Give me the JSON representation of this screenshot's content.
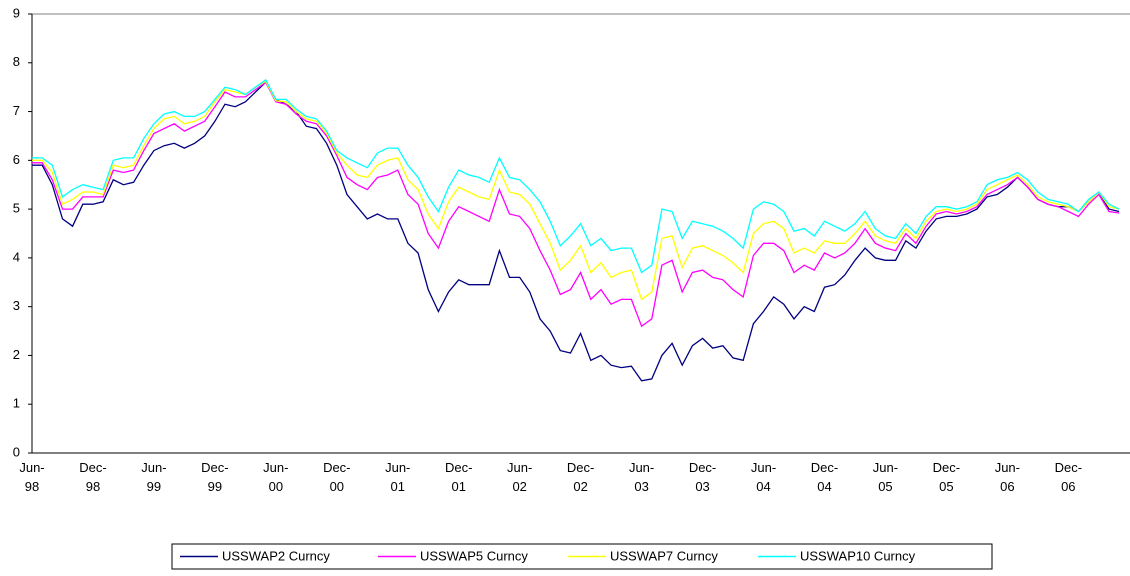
{
  "chart_data": {
    "type": "line",
    "categories": [
      "Jun-98",
      null,
      null,
      null,
      null,
      null,
      "Dec-98",
      null,
      null,
      null,
      null,
      null,
      "Jun-99",
      null,
      null,
      null,
      null,
      null,
      "Dec-99",
      null,
      null,
      null,
      null,
      null,
      "Jun-00",
      null,
      null,
      null,
      null,
      null,
      "Dec-00",
      null,
      null,
      null,
      null,
      null,
      "Jun-01",
      null,
      null,
      null,
      null,
      null,
      "Dec-01",
      null,
      null,
      null,
      null,
      null,
      "Jun-02",
      null,
      null,
      null,
      null,
      null,
      "Dec-02",
      null,
      null,
      null,
      null,
      null,
      "Jun-03",
      null,
      null,
      null,
      null,
      null,
      "Dec-03",
      null,
      null,
      null,
      null,
      null,
      "Jun-04",
      null,
      null,
      null,
      null,
      null,
      "Dec-04",
      null,
      null,
      null,
      null,
      null,
      "Jun-05",
      null,
      null,
      null,
      null,
      null,
      "Dec-05",
      null,
      null,
      null,
      null,
      null,
      "Jun-06",
      null,
      null,
      null,
      null,
      null,
      "Dec-06",
      null,
      null,
      null,
      null,
      null
    ],
    "series": [
      {
        "name": "USSWAP2 Curncy",
        "color": "#000080",
        "values": [
          5.9,
          5.9,
          5.5,
          4.8,
          4.65,
          5.1,
          5.1,
          5.15,
          5.6,
          5.5,
          5.55,
          5.9,
          6.2,
          6.3,
          6.35,
          6.25,
          6.35,
          6.5,
          6.8,
          7.15,
          7.1,
          7.2,
          7.4,
          7.6,
          7.25,
          7.15,
          7.0,
          6.7,
          6.65,
          6.35,
          5.9,
          5.3,
          5.05,
          4.8,
          4.9,
          4.8,
          4.8,
          4.3,
          4.1,
          3.35,
          2.9,
          3.3,
          3.55,
          3.45,
          3.45,
          3.45,
          4.15,
          3.6,
          3.6,
          3.3,
          2.75,
          2.5,
          2.1,
          2.05,
          2.45,
          1.9,
          2.0,
          1.8,
          1.75,
          1.78,
          1.48,
          1.52,
          2.0,
          2.25,
          1.8,
          2.2,
          2.35,
          2.15,
          2.2,
          1.95,
          1.9,
          2.65,
          2.9,
          3.2,
          3.05,
          2.75,
          3.0,
          2.9,
          3.4,
          3.45,
          3.65,
          3.95,
          4.2,
          4.0,
          3.95,
          3.95,
          4.35,
          4.2,
          4.55,
          4.8,
          4.85,
          4.85,
          4.9,
          5.0,
          5.25,
          5.3,
          5.45,
          5.65,
          5.45,
          5.2,
          5.1,
          5.05,
          5.05,
          4.95,
          5.15,
          5.35,
          5.0,
          4.95
        ]
      },
      {
        "name": "USSWAP5 Curncy",
        "color": "#ff00ff",
        "values": [
          5.95,
          5.95,
          5.6,
          5.0,
          5.0,
          5.25,
          5.25,
          5.25,
          5.8,
          5.75,
          5.8,
          6.2,
          6.55,
          6.65,
          6.75,
          6.6,
          6.7,
          6.8,
          7.1,
          7.4,
          7.3,
          7.3,
          7.45,
          7.6,
          7.2,
          7.15,
          6.95,
          6.8,
          6.75,
          6.5,
          6.1,
          5.65,
          5.5,
          5.4,
          5.65,
          5.7,
          5.8,
          5.3,
          5.1,
          4.5,
          4.2,
          4.75,
          5.05,
          4.95,
          4.85,
          4.75,
          5.4,
          4.9,
          4.85,
          4.6,
          4.15,
          3.75,
          3.25,
          3.35,
          3.7,
          3.15,
          3.35,
          3.05,
          3.15,
          3.15,
          2.6,
          2.75,
          3.85,
          3.95,
          3.3,
          3.7,
          3.75,
          3.6,
          3.55,
          3.35,
          3.2,
          4.05,
          4.3,
          4.3,
          4.15,
          3.7,
          3.85,
          3.75,
          4.1,
          4.0,
          4.1,
          4.3,
          4.6,
          4.3,
          4.2,
          4.15,
          4.5,
          4.3,
          4.65,
          4.9,
          4.95,
          4.9,
          4.95,
          5.05,
          5.3,
          5.4,
          5.5,
          5.65,
          5.45,
          5.2,
          5.1,
          5.05,
          4.95,
          4.85,
          5.1,
          5.3,
          4.95,
          4.92
        ]
      },
      {
        "name": "USSWAP7 Curncy",
        "color": "#ffff00",
        "values": [
          6.0,
          6.0,
          5.75,
          5.1,
          5.2,
          5.35,
          5.35,
          5.3,
          5.9,
          5.85,
          5.9,
          6.3,
          6.65,
          6.85,
          6.9,
          6.75,
          6.8,
          6.9,
          7.2,
          7.45,
          7.4,
          7.35,
          7.5,
          7.62,
          7.22,
          7.2,
          7.0,
          6.85,
          6.8,
          6.55,
          6.15,
          5.9,
          5.7,
          5.65,
          5.9,
          6.0,
          6.05,
          5.6,
          5.4,
          4.9,
          4.6,
          5.15,
          5.45,
          5.35,
          5.25,
          5.2,
          5.8,
          5.35,
          5.3,
          5.1,
          4.7,
          4.3,
          3.75,
          3.95,
          4.25,
          3.7,
          3.9,
          3.6,
          3.7,
          3.75,
          3.15,
          3.3,
          4.4,
          4.45,
          3.8,
          4.2,
          4.25,
          4.15,
          4.05,
          3.9,
          3.7,
          4.5,
          4.7,
          4.75,
          4.6,
          4.1,
          4.2,
          4.1,
          4.35,
          4.3,
          4.3,
          4.5,
          4.75,
          4.45,
          4.35,
          4.3,
          4.6,
          4.4,
          4.75,
          4.95,
          5.0,
          4.95,
          5.0,
          5.1,
          5.4,
          5.5,
          5.6,
          5.7,
          5.5,
          5.25,
          5.15,
          5.1,
          5.05,
          4.95,
          5.15,
          5.35,
          5.05,
          5.0
        ]
      },
      {
        "name": "USSWAP10 Curncy",
        "color": "#00ffff",
        "values": [
          6.05,
          6.05,
          5.9,
          5.25,
          5.4,
          5.5,
          5.45,
          5.4,
          6.0,
          6.05,
          6.05,
          6.45,
          6.75,
          6.95,
          7.0,
          6.9,
          6.9,
          7.0,
          7.25,
          7.5,
          7.45,
          7.35,
          7.5,
          7.65,
          7.25,
          7.25,
          7.05,
          6.9,
          6.85,
          6.6,
          6.2,
          6.05,
          5.95,
          5.85,
          6.15,
          6.25,
          6.25,
          5.9,
          5.65,
          5.25,
          4.95,
          5.45,
          5.8,
          5.7,
          5.65,
          5.55,
          6.05,
          5.65,
          5.6,
          5.4,
          5.15,
          4.75,
          4.25,
          4.45,
          4.7,
          4.25,
          4.4,
          4.15,
          4.2,
          4.2,
          3.7,
          3.85,
          5.0,
          4.95,
          4.4,
          4.75,
          4.7,
          4.65,
          4.55,
          4.4,
          4.2,
          5.0,
          5.15,
          5.1,
          4.95,
          4.55,
          4.6,
          4.45,
          4.75,
          4.65,
          4.55,
          4.7,
          4.95,
          4.6,
          4.45,
          4.4,
          4.7,
          4.5,
          4.85,
          5.05,
          5.05,
          5.0,
          5.05,
          5.15,
          5.5,
          5.6,
          5.65,
          5.75,
          5.6,
          5.35,
          5.2,
          5.15,
          5.1,
          4.95,
          5.2,
          5.35,
          5.1,
          5.0
        ]
      }
    ],
    "ylim": [
      0,
      9
    ],
    "yticks": [
      0,
      1,
      2,
      3,
      4,
      5,
      6,
      7,
      8,
      9
    ],
    "grid": false,
    "legend": "bottom"
  }
}
